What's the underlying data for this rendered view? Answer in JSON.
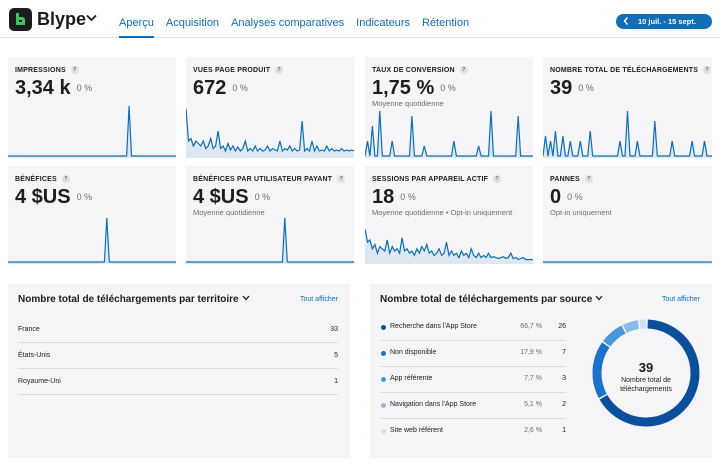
{
  "app": {
    "name": "Blype"
  },
  "nav": [
    {
      "label": "Aperçu",
      "active": true
    },
    {
      "label": "Acquisition"
    },
    {
      "label": "Analyses comparatives"
    },
    {
      "label": "Indicateurs"
    },
    {
      "label": "Rétention"
    }
  ],
  "date_range": "10 juil. - 15 sept.",
  "colors": {
    "accent": "#0f6eb5",
    "card_bg": "#f5f5f7",
    "spark_fill": "#dde8f3"
  },
  "kpis": [
    {
      "title": "IMPRESSIONS",
      "value": "3,34 k",
      "delta": "0 %",
      "sub": "",
      "spark": [
        0,
        0,
        0,
        0,
        0,
        0,
        0,
        0,
        0,
        0,
        0,
        0,
        0,
        0,
        0,
        0,
        0,
        0,
        0,
        0,
        0,
        0,
        0,
        0,
        0,
        0,
        0,
        0,
        0,
        0,
        0,
        0,
        0,
        0,
        0,
        0,
        0,
        0,
        0,
        0,
        0,
        0,
        0,
        0,
        0,
        0,
        0,
        0,
        0,
        1,
        0,
        0,
        0,
        0,
        0,
        0,
        0,
        0,
        0,
        0,
        0,
        0,
        0,
        0,
        0,
        0,
        0,
        0,
        0
      ]
    },
    {
      "title": "VUES PAGE PRODUIT",
      "value": "672",
      "delta": "0 %",
      "sub": "",
      "spark": [
        0.95,
        0.3,
        0.35,
        0.2,
        0.3,
        0.25,
        0.2,
        0.3,
        0.15,
        0.2,
        0.35,
        0.15,
        0.2,
        0.5,
        0.15,
        0.2,
        0.1,
        0.25,
        0.12,
        0.2,
        0.1,
        0.18,
        0.1,
        0.15,
        0.3,
        0.1,
        0.15,
        0.1,
        0.2,
        0.1,
        0.15,
        0.1,
        0.12,
        0.2,
        0.1,
        0.15,
        0.12,
        0.1,
        0.3,
        0.1,
        0.15,
        0.12,
        0.2,
        0.1,
        0.15,
        0.1,
        0.12,
        0.7,
        0.1,
        0.15,
        0.1,
        0.3,
        0.1,
        0.2,
        0.1,
        0.12,
        0.1,
        0.2,
        0.1,
        0.15,
        0.1,
        0.12,
        0.1,
        0.15,
        0.1,
        0.12,
        0.1,
        0.12,
        0.1
      ]
    },
    {
      "title": "TAUX DE CONVERSION",
      "value": "1,75 %",
      "delta": "0 %",
      "sub": "Moyenne quotidienne",
      "spark": [
        0,
        0.3,
        0,
        0.6,
        0,
        0,
        0.9,
        0,
        0,
        0,
        0,
        0.3,
        0,
        0,
        0,
        0,
        0,
        0,
        0,
        0.8,
        0,
        0,
        0,
        0,
        0.2,
        0,
        0,
        0,
        0,
        0,
        0,
        0,
        0,
        0,
        0,
        0,
        0.3,
        0,
        0,
        0,
        0,
        0,
        0,
        0,
        0,
        0,
        0.2,
        0,
        0,
        0,
        0,
        0.9,
        0,
        0,
        0,
        0,
        0,
        0,
        0,
        0,
        0,
        0,
        0.8,
        0,
        0,
        0,
        0,
        0,
        0
      ]
    },
    {
      "title": "NOMBRE TOTAL DE TÉLÉCHARGEMENTS",
      "value": "39",
      "delta": "0 %",
      "sub": "",
      "spark": [
        0,
        0.4,
        0,
        0.3,
        0,
        0.5,
        0,
        0,
        0.4,
        0,
        0,
        0.3,
        0,
        0,
        0,
        0.3,
        0,
        0,
        0,
        0.5,
        0,
        0,
        0,
        0,
        0,
        0,
        0,
        0,
        0,
        0,
        0,
        0.3,
        0,
        0,
        0.9,
        0,
        0,
        0,
        0.3,
        0,
        0,
        0,
        0,
        0,
        0,
        0.7,
        0,
        0,
        0,
        0,
        0,
        0,
        0.3,
        0,
        0,
        0,
        0,
        0,
        0,
        0,
        0.3,
        0,
        0,
        0,
        0,
        0.3,
        0,
        0,
        0
      ]
    },
    {
      "title": "BÉNÉFICES",
      "value": "4 $US",
      "delta": "0 %",
      "sub": "",
      "spark": [
        0,
        0,
        0,
        0,
        0,
        0,
        0,
        0,
        0,
        0,
        0,
        0,
        0,
        0,
        0,
        0,
        0,
        0,
        0,
        0,
        0,
        0,
        0,
        0,
        0,
        0,
        0,
        0,
        0,
        0,
        0,
        0,
        0,
        0,
        0,
        0,
        0,
        0,
        0,
        0,
        1,
        0,
        0,
        0,
        0,
        0,
        0,
        0,
        0,
        0,
        0,
        0,
        0,
        0,
        0,
        0,
        0,
        0,
        0,
        0,
        0,
        0,
        0,
        0,
        0,
        0,
        0,
        0,
        0
      ]
    },
    {
      "title": "BÉNÉFICES PAR UTILISATEUR PAYANT",
      "value": "4 $US",
      "delta": "0 %",
      "sub": "Moyenne quotidienne",
      "spark": [
        0,
        0,
        0,
        0,
        0,
        0,
        0,
        0,
        0,
        0,
        0,
        0,
        0,
        0,
        0,
        0,
        0,
        0,
        0,
        0,
        0,
        0,
        0,
        0,
        0,
        0,
        0,
        0,
        0,
        0,
        0,
        0,
        0,
        0,
        0,
        0,
        0,
        0,
        0,
        0,
        1,
        0,
        0,
        0,
        0,
        0,
        0,
        0,
        0,
        0,
        0,
        0,
        0,
        0,
        0,
        0,
        0,
        0,
        0,
        0,
        0,
        0,
        0,
        0,
        0,
        0,
        0,
        0,
        0
      ]
    },
    {
      "title": "SESSIONS PAR APPAREIL ACTIF",
      "value": "18",
      "delta": "0 %",
      "sub": "Moyenne quotidienne • Opt-in uniquement",
      "spark": [
        0.75,
        0.45,
        0.5,
        0.3,
        0.4,
        0.2,
        0.35,
        0.3,
        0.25,
        0.5,
        0.2,
        0.35,
        0.25,
        0.3,
        0.2,
        0.55,
        0.25,
        0.3,
        0.2,
        0.25,
        0.15,
        0.3,
        0.2,
        0.35,
        0.25,
        0.4,
        0.2,
        0.25,
        0.15,
        0.2,
        0.3,
        0.15,
        0.2,
        0.45,
        0.15,
        0.25,
        0.15,
        0.2,
        0.1,
        0.25,
        0.15,
        0.2,
        0.1,
        0.3,
        0.15,
        0.1,
        0.2,
        0.1,
        0.15,
        0.1,
        0.2,
        0.1,
        0.12,
        0.1,
        0.08,
        0.1,
        0.12,
        0.08,
        0.1,
        0.2,
        0.08,
        0.1,
        0.06,
        0.08,
        0.1,
        0.06,
        0.05,
        0.06,
        0.05
      ]
    },
    {
      "title": "PANNES",
      "value": "0",
      "delta": "0 %",
      "sub": "Opt-in uniquement",
      "spark": [
        0,
        0,
        0,
        0,
        0,
        0,
        0,
        0,
        0,
        0,
        0,
        0,
        0,
        0,
        0,
        0,
        0,
        0,
        0,
        0,
        0,
        0,
        0,
        0,
        0,
        0,
        0,
        0,
        0,
        0,
        0,
        0,
        0,
        0,
        0,
        0,
        0,
        0,
        0,
        0,
        0,
        0,
        0,
        0,
        0,
        0,
        0,
        0,
        0,
        0,
        0,
        0,
        0,
        0,
        0,
        0,
        0,
        0,
        0,
        0,
        0,
        0,
        0,
        0,
        0,
        0,
        0,
        0,
        0
      ]
    }
  ],
  "territory": {
    "title": "Nombre total de téléchargements par territoire",
    "show_all": "Tout afficher",
    "rows": [
      {
        "name": "France",
        "count": "33"
      },
      {
        "name": "États-Unis",
        "count": "5"
      },
      {
        "name": "Royaume-Uni",
        "count": "1"
      }
    ]
  },
  "source": {
    "title": "Nombre total de téléchargements par source",
    "show_all": "Tout afficher",
    "rows": [
      {
        "name": "Recherche dans l'App Store",
        "pct": "66,7 %",
        "count": "26",
        "value": 26,
        "color": "#0b4f9c"
      },
      {
        "name": "Non disponible",
        "pct": "17,9 %",
        "count": "7",
        "value": 7,
        "color": "#1a73c9"
      },
      {
        "name": "App référente",
        "pct": "7,7 %",
        "count": "3",
        "value": 3,
        "color": "#4b95db"
      },
      {
        "name": "Navigation dans l'App Store",
        "pct": "5,1 %",
        "count": "2",
        "value": 2,
        "color": "#8bbbe9"
      },
      {
        "name": "Site web référent",
        "pct": "2,6 %",
        "count": "1",
        "value": 1,
        "color": "#cfe2f5"
      }
    ],
    "donut_total": "39",
    "donut_label": "Nombre total de téléchargements"
  }
}
